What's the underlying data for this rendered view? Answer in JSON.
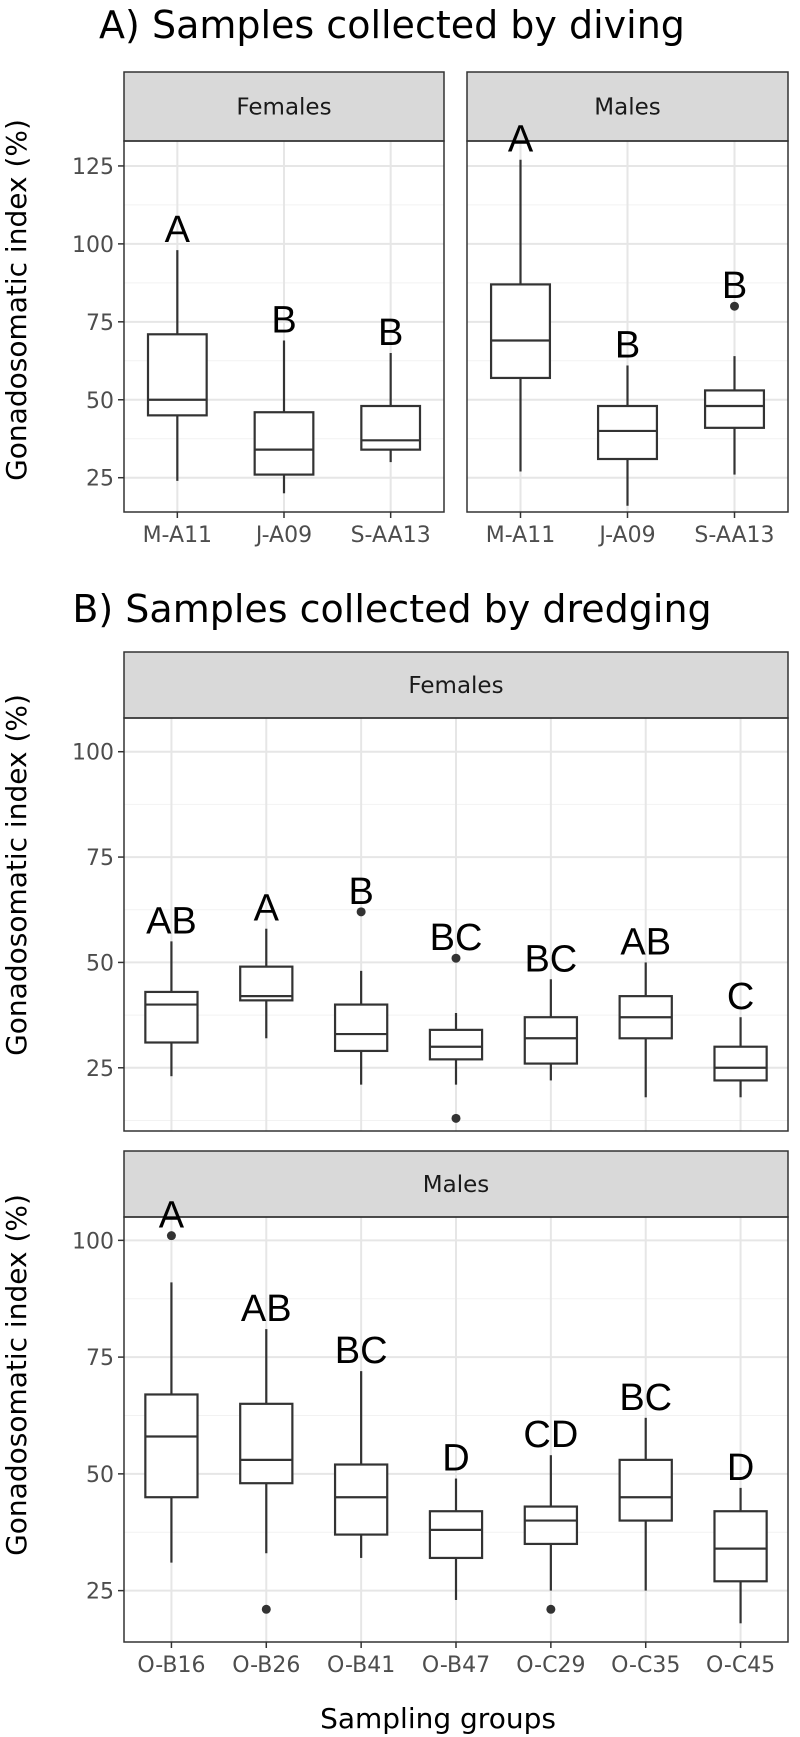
{
  "figure": {
    "title_a": "A) Samples collected by diving",
    "title_b": "B) Samples collected by dredging",
    "ylabel": "Gonadosomatic index (%)",
    "xlabel": "Sampling groups"
  },
  "chart_data": [
    {
      "type": "boxplot",
      "section": "A",
      "title": "A) Samples collected by diving",
      "facet": "Females",
      "ylabel": "Gonadosomatic index (%)",
      "xlabel": "",
      "ylim": [
        14,
        133
      ],
      "yticks": [
        25,
        50,
        75,
        100,
        125
      ],
      "grid": true,
      "categories": [
        "M-A11",
        "J-A09",
        "S-AA13"
      ],
      "boxes": [
        {
          "min": 24,
          "q1": 45,
          "median": 50,
          "q3": 71,
          "max": 98,
          "outliers": [],
          "letter": "A"
        },
        {
          "min": 20,
          "q1": 26,
          "median": 34,
          "q3": 46,
          "max": 69,
          "outliers": [],
          "letter": "B"
        },
        {
          "min": 30,
          "q1": 34,
          "median": 37,
          "q3": 48,
          "max": 65,
          "outliers": [],
          "letter": "B"
        }
      ]
    },
    {
      "type": "boxplot",
      "section": "A",
      "title": "A) Samples collected by diving",
      "facet": "Males",
      "ylabel": "Gonadosomatic index (%)",
      "xlabel": "",
      "ylim": [
        14,
        133
      ],
      "yticks": [
        25,
        50,
        75,
        100,
        125
      ],
      "grid": true,
      "categories": [
        "M-A11",
        "J-A09",
        "S-AA13"
      ],
      "boxes": [
        {
          "min": 27,
          "q1": 57,
          "median": 69,
          "q3": 87,
          "max": 127,
          "outliers": [],
          "letter": "A"
        },
        {
          "min": 16,
          "q1": 31,
          "median": 40,
          "q3": 48,
          "max": 61,
          "outliers": [],
          "letter": "B"
        },
        {
          "min": 26,
          "q1": 41,
          "median": 48,
          "q3": 53,
          "max": 64,
          "outliers": [
            80
          ],
          "letter": "B"
        }
      ]
    },
    {
      "type": "boxplot",
      "section": "B",
      "title": "B) Samples collected by dredging",
      "facet": "Females",
      "ylabel": "Gonadosomatic index (%)",
      "xlabel": "",
      "ylim": [
        10,
        108
      ],
      "yticks": [
        25,
        50,
        75,
        100
      ],
      "grid": true,
      "categories": [
        "O-B16",
        "O-B26",
        "O-B41",
        "O-B47",
        "O-C29",
        "O-C35",
        "O-C45"
      ],
      "boxes": [
        {
          "min": 23,
          "q1": 31,
          "median": 40,
          "q3": 43,
          "max": 55,
          "outliers": [],
          "letter": "AB"
        },
        {
          "min": 32,
          "q1": 41,
          "median": 42,
          "q3": 49,
          "max": 58,
          "outliers": [],
          "letter": "A"
        },
        {
          "min": 21,
          "q1": 29,
          "median": 33,
          "q3": 40,
          "max": 48,
          "outliers": [
            62
          ],
          "letter": "B"
        },
        {
          "min": 21,
          "q1": 27,
          "median": 30,
          "q3": 34,
          "max": 38,
          "outliers": [
            13,
            51
          ],
          "letter": "BC"
        },
        {
          "min": 22,
          "q1": 26,
          "median": 32,
          "q3": 37,
          "max": 46,
          "outliers": [],
          "letter": "BC"
        },
        {
          "min": 18,
          "q1": 32,
          "median": 37,
          "q3": 42,
          "max": 50,
          "outliers": [],
          "letter": "AB"
        },
        {
          "min": 18,
          "q1": 22,
          "median": 25,
          "q3": 30,
          "max": 37,
          "outliers": [],
          "letter": "C"
        }
      ]
    },
    {
      "type": "boxplot",
      "section": "B",
      "title": "B) Samples collected by dredging",
      "facet": "Males",
      "ylabel": "Gonadosomatic index (%)",
      "xlabel": "Sampling groups",
      "ylim": [
        14,
        105
      ],
      "yticks": [
        25,
        50,
        75,
        100
      ],
      "grid": true,
      "categories": [
        "O-B16",
        "O-B26",
        "O-B41",
        "O-B47",
        "O-C29",
        "O-C35",
        "O-C45"
      ],
      "boxes": [
        {
          "min": 31,
          "q1": 45,
          "median": 58,
          "q3": 67,
          "max": 91,
          "outliers": [
            101
          ],
          "letter": "A"
        },
        {
          "min": 33,
          "q1": 48,
          "median": 53,
          "q3": 65,
          "max": 81,
          "outliers": [
            21
          ],
          "letter": "AB"
        },
        {
          "min": 32,
          "q1": 37,
          "median": 45,
          "q3": 52,
          "max": 72,
          "outliers": [],
          "letter": "BC"
        },
        {
          "min": 23,
          "q1": 32,
          "median": 38,
          "q3": 42,
          "max": 49,
          "outliers": [],
          "letter": "D"
        },
        {
          "min": 25,
          "q1": 35,
          "median": 40,
          "q3": 43,
          "max": 54,
          "outliers": [
            21
          ],
          "letter": "CD"
        },
        {
          "min": 25,
          "q1": 40,
          "median": 45,
          "q3": 53,
          "max": 62,
          "outliers": [],
          "letter": "BC"
        },
        {
          "min": 18,
          "q1": 27,
          "median": 34,
          "q3": 42,
          "max": 47,
          "outliers": [],
          "letter": "D"
        }
      ]
    }
  ]
}
